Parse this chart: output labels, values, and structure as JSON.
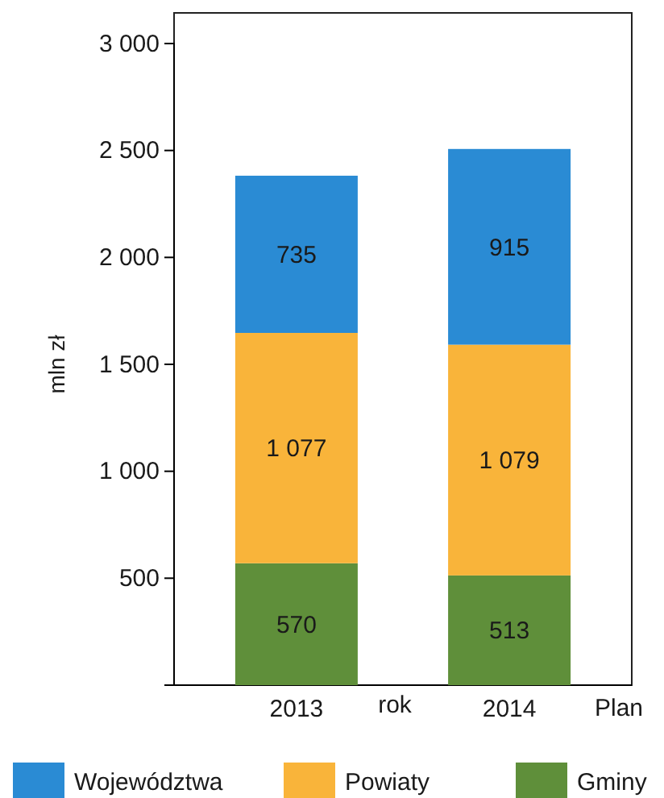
{
  "chart_data": {
    "type": "bar",
    "stacked": true,
    "categories": [
      "2013",
      "2014"
    ],
    "series": [
      {
        "name": "Gminy",
        "color": "#5f8f3a",
        "values": [
          570,
          513
        ]
      },
      {
        "name": "Powiaty",
        "color": "#f9b43a",
        "values": [
          1077,
          1079
        ]
      },
      {
        "name": "Województwa",
        "color": "#2a8bd4",
        "values": [
          735,
          915
        ]
      }
    ],
    "value_labels": [
      [
        "570",
        "513"
      ],
      [
        "1 077",
        "1 079"
      ],
      [
        "735",
        "915"
      ]
    ],
    "ylim": [
      0,
      3000
    ],
    "yticks": [
      {
        "value": 0,
        "label": null
      },
      {
        "value": 500,
        "label": "500"
      },
      {
        "value": 1000,
        "label": "1 000"
      },
      {
        "value": 1500,
        "label": "1 500"
      },
      {
        "value": 2000,
        "label": "2 000"
      },
      {
        "value": 2500,
        "label": "2 500"
      },
      {
        "value": 3000,
        "label": "3 000"
      }
    ],
    "xlabel": "rok",
    "ylabel": "mln zł",
    "annotations": [
      "Plan"
    ],
    "legend": "bottom",
    "grid": false
  }
}
